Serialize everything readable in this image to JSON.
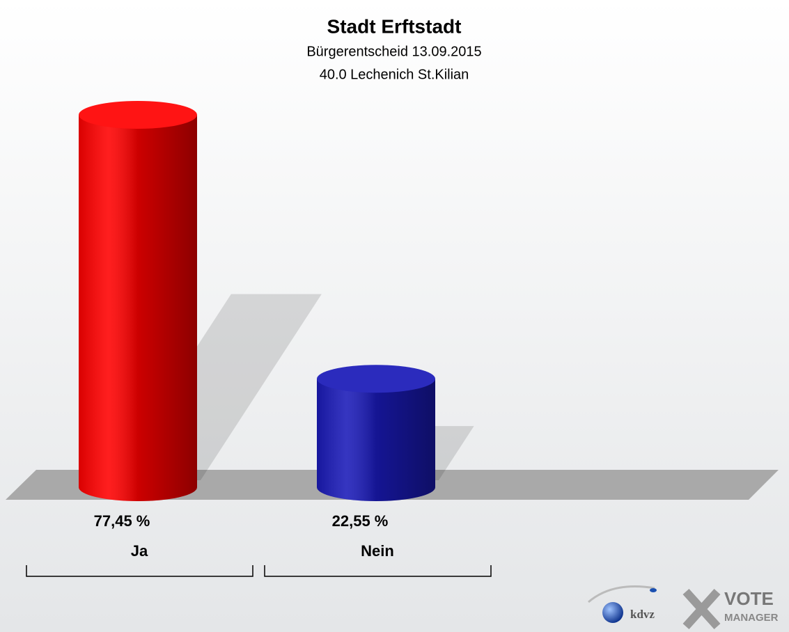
{
  "chart_data": {
    "type": "bar",
    "title": "Stadt Erftstadt",
    "subtitle": [
      "Bürgerentscheid 13.09.2015",
      "40.0 Lechenich St.Kilian"
    ],
    "categories": [
      "Ja",
      "Nein"
    ],
    "series": [
      {
        "values": [
          77.45,
          22.55
        ],
        "value_labels": [
          "77,45 %",
          "22,55 %"
        ],
        "colors": [
          "#ff0000",
          "#1a1ab8"
        ]
      }
    ]
  },
  "logo": {
    "kdvz": "kdvz",
    "vote": "VOTE",
    "manager": "MANAGER"
  }
}
